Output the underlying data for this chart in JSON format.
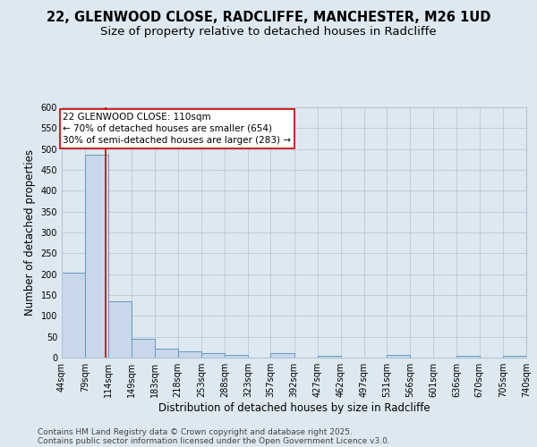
{
  "title_line1": "22, GLENWOOD CLOSE, RADCLIFFE, MANCHESTER, M26 1UD",
  "title_line2": "Size of property relative to detached houses in Radcliffe",
  "xlabel": "Distribution of detached houses by size in Radcliffe",
  "ylabel": "Number of detached properties",
  "footer_line1": "Contains HM Land Registry data © Crown copyright and database right 2025.",
  "footer_line2": "Contains public sector information licensed under the Open Government Licence v3.0.",
  "annotation_line1": "22 GLENWOOD CLOSE: 110sqm",
  "annotation_line2": "← 70% of detached houses are smaller (654)",
  "annotation_line3": "30% of semi-detached houses are larger (283) →",
  "bar_left_edges": [
    44,
    79,
    114,
    149,
    183,
    218,
    253,
    288,
    323,
    357,
    392,
    427,
    462,
    497,
    531,
    566,
    601,
    636,
    670,
    705
  ],
  "bar_widths": [
    35,
    35,
    35,
    34,
    35,
    35,
    35,
    35,
    34,
    35,
    35,
    35,
    35,
    34,
    35,
    35,
    35,
    34,
    35,
    35
  ],
  "bar_heights": [
    203,
    487,
    135,
    45,
    22,
    15,
    11,
    6,
    0,
    10,
    0,
    5,
    0,
    0,
    7,
    0,
    0,
    5,
    0,
    4
  ],
  "bar_color": "#c8d8ea",
  "bar_edge_color": "#6699bb",
  "vline_color": "#cc0000",
  "vline_x": 110,
  "annotation_box_color": "#cc0000",
  "background_color": "#dde8f0",
  "plot_bg_color": "#dde8f0",
  "ylim": [
    0,
    600
  ],
  "yticks": [
    0,
    50,
    100,
    150,
    200,
    250,
    300,
    350,
    400,
    450,
    500,
    550,
    600
  ],
  "tick_labels": [
    "44sqm",
    "79sqm",
    "114sqm",
    "149sqm",
    "183sqm",
    "218sqm",
    "253sqm",
    "288sqm",
    "323sqm",
    "357sqm",
    "392sqm",
    "427sqm",
    "462sqm",
    "497sqm",
    "531sqm",
    "566sqm",
    "601sqm",
    "636sqm",
    "670sqm",
    "705sqm",
    "740sqm"
  ],
  "grid_color": "#b0c4d8",
  "title_fontsize": 10.5,
  "subtitle_fontsize": 9.5,
  "axis_label_fontsize": 8.5,
  "tick_fontsize": 7,
  "footer_fontsize": 6.5,
  "annotation_fontsize": 7.5
}
